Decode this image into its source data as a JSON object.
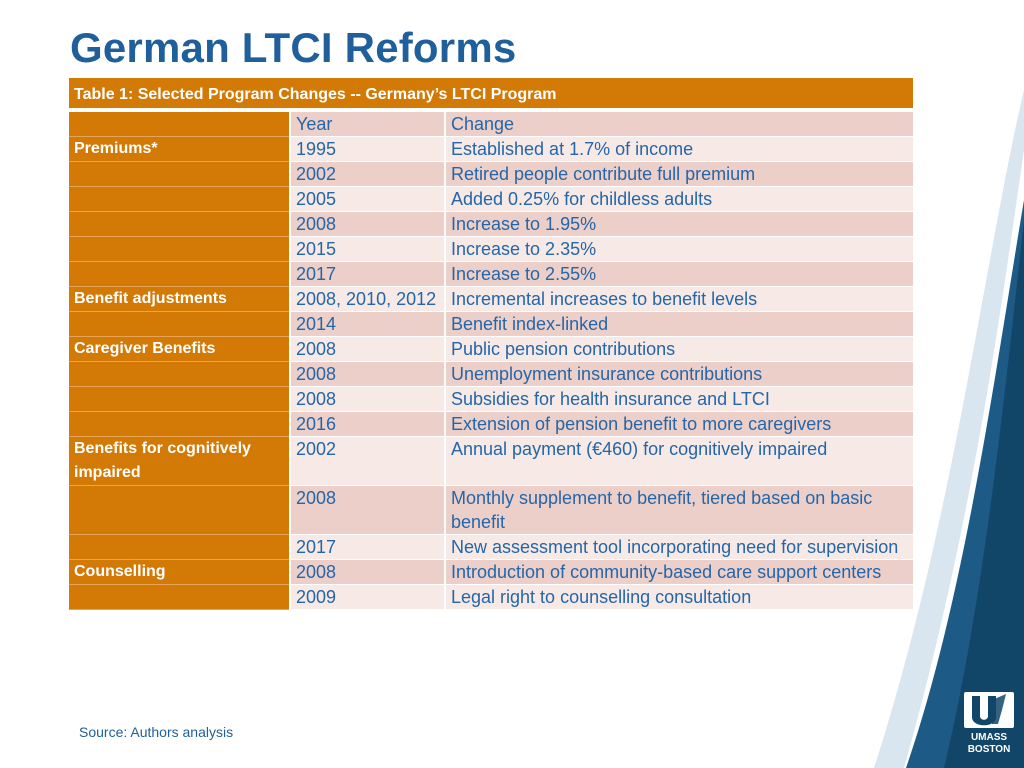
{
  "title": "German LTCI Reforms",
  "table": {
    "caption": "Table 1: Selected Program Changes -- Germany’s LTCI Program",
    "header": {
      "category": "",
      "year": "Year",
      "change": "Change"
    },
    "rows": [
      {
        "category": "Premiums*",
        "year": "1995",
        "change": "Established at 1.7% of income"
      },
      {
        "category": "",
        "year": "2002",
        "change": "Retired people contribute full premium"
      },
      {
        "category": "",
        "year": "2005",
        "change": "Added 0.25% for childless adults"
      },
      {
        "category": "",
        "year": "2008",
        "change": "Increase to 1.95%"
      },
      {
        "category": "",
        "year": "2015",
        "change": "Increase to 2.35%"
      },
      {
        "category": "",
        "year": "2017",
        "change": "Increase to 2.55%"
      },
      {
        "category": "Benefit adjustments",
        "year": "2008, 2010, 2012",
        "change": "Incremental increases to benefit levels"
      },
      {
        "category": "",
        "year": "2014",
        "change": "Benefit index-linked"
      },
      {
        "category": "Caregiver Benefits",
        "year": "2008",
        "change": "Public pension contributions"
      },
      {
        "category": "",
        "year": "2008",
        "change": "Unemployment insurance contributions"
      },
      {
        "category": "",
        "year": "2008",
        "change": "Subsidies for health insurance and LTCI"
      },
      {
        "category": "",
        "year": "2016",
        "change": "Extension of pension benefit to more caregivers"
      },
      {
        "category": "Benefits for cognitively impaired",
        "year": "2002",
        "change": "Annual payment (€460) for cognitively impaired"
      },
      {
        "category": "",
        "year": "2008",
        "change": "Monthly supplement to benefit, tiered based on basic benefit"
      },
      {
        "category": "",
        "year": "2017",
        "change": "New assessment tool incorporating need for supervision"
      },
      {
        "category": "Counselling",
        "year": "2008",
        "change": "Introduction of community-based care support centers"
      },
      {
        "category": "",
        "year": "2009",
        "change": "Legal right to counselling consultation"
      }
    ]
  },
  "source": "Source: Authors analysis",
  "logo": {
    "line1": "UMASS",
    "line2": "BOSTON"
  },
  "colors": {
    "title": "#1f5f9b",
    "accent": "#d37a06",
    "row_dark": "#eccfc8",
    "row_light": "#f6e9e6",
    "text": "#2566a8"
  }
}
